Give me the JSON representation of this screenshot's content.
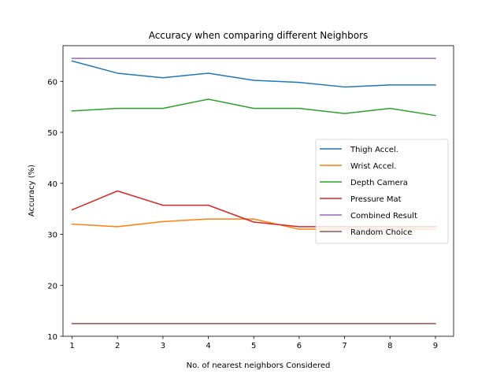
{
  "chart_data": {
    "type": "line",
    "title": "Accuracy when comparing different Neighbors",
    "xlabel": "No. of nearest neighbors Considered",
    "ylabel": "Accuracy (%)",
    "x": [
      1,
      2,
      3,
      4,
      5,
      6,
      7,
      8,
      9
    ],
    "xlim": [
      0.8,
      9.4
    ],
    "ylim": [
      10,
      67
    ],
    "xticks": [
      1,
      2,
      3,
      4,
      5,
      6,
      7,
      8,
      9
    ],
    "yticks": [
      10,
      20,
      30,
      40,
      50,
      60
    ],
    "grid": false,
    "legend_position": "center-right",
    "series": [
      {
        "name": "Thigh Accel.",
        "color": "#1f77b4",
        "values": [
          64.0,
          61.6,
          60.7,
          61.6,
          60.2,
          59.8,
          58.9,
          59.3,
          59.3
        ]
      },
      {
        "name": "Wrist Accel.",
        "color": "#ff7f0e",
        "values": [
          32.0,
          31.5,
          32.5,
          33.0,
          33.0,
          31.0,
          31.0,
          31.0,
          31.0
        ]
      },
      {
        "name": "Depth Camera",
        "color": "#2ca02c",
        "values": [
          54.2,
          54.7,
          54.7,
          56.5,
          54.7,
          54.7,
          53.7,
          54.7,
          53.3
        ]
      },
      {
        "name": "Pressure Mat",
        "color": "#d62728",
        "values": [
          34.8,
          38.5,
          35.7,
          35.7,
          32.4,
          31.5,
          31.5,
          31.5,
          31.5
        ]
      },
      {
        "name": "Combined Result",
        "color": "#9467bd",
        "values": [
          64.5,
          64.5,
          64.5,
          64.5,
          64.5,
          64.5,
          64.5,
          64.5,
          64.5
        ]
      },
      {
        "name": "Random Choice",
        "color": "#8c564b",
        "values": [
          12.5,
          12.5,
          12.5,
          12.5,
          12.5,
          12.5,
          12.5,
          12.5,
          12.5
        ]
      }
    ]
  }
}
